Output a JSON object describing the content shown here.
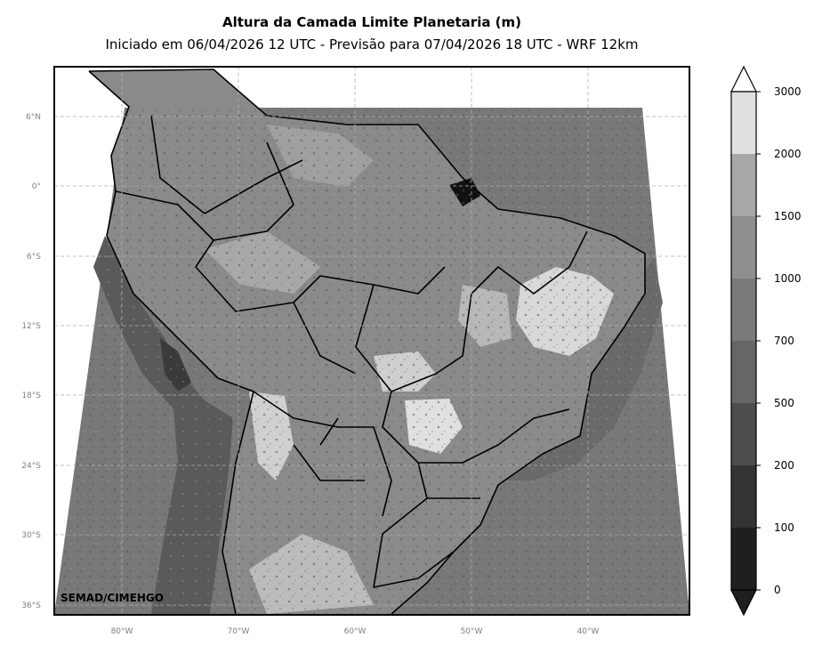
{
  "title": "Altura da Camada Limite Planetaria (m)",
  "subtitle": "Iniciado em 06/04/2026 12 UTC - Previsão para 07/04/2026 18 UTC - WRF 12km",
  "credit": "SEMAD/CIMEHGO",
  "lat_labels": [
    "6°N",
    "0°",
    "6°S",
    "12°S",
    "18°S",
    "24°S",
    "30°S",
    "36°S"
  ],
  "lon_labels": [
    "80°W",
    "70°W",
    "60°W",
    "50°W",
    "40°W"
  ],
  "colorbar": {
    "tick_labels": [
      "0",
      "100",
      "200",
      "500",
      "700",
      "1000",
      "1500",
      "2000",
      "3000"
    ],
    "bin_colors": [
      "#1f1f1f",
      "#333333",
      "#4d4d4d",
      "#666666",
      "#7a7a7a",
      "#8f8f8f",
      "#a8a8a8",
      "#e0e0e0"
    ],
    "under_color": "#1f1f1f",
    "over_color": "#ffffff"
  },
  "colors": {
    "ocean_field": "#777777",
    "land_field": "#8a8a8a",
    "border": "#000000"
  }
}
